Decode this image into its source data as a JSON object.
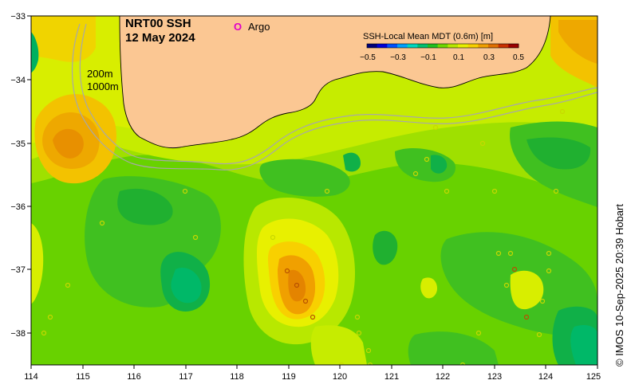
{
  "title": {
    "product": "NRT00 SSH",
    "date": "12 May 2024"
  },
  "legend": {
    "argo_symbol": "O",
    "argo_label": "Argo",
    "argo_color": "#e000c8"
  },
  "isobaths": {
    "shallow": "200m",
    "deep": "1000m"
  },
  "colorbar": {
    "title": "SSH-Local Mean MDT (0.6m) [m]",
    "ticks": [
      "−0.5",
      "−0.3",
      "−0.1",
      "0.1",
      "0.3",
      "0.5"
    ],
    "colors": [
      "#00007a",
      "#0000d8",
      "#0050ff",
      "#00a0ff",
      "#00d8c0",
      "#00c070",
      "#20c020",
      "#70d800",
      "#b8e800",
      "#e8f000",
      "#f8d000",
      "#f0a000",
      "#e07000",
      "#c83000",
      "#9a0000"
    ]
  },
  "axes": {
    "x_ticks": [
      "114",
      "115",
      "116",
      "117",
      "118",
      "119",
      "120",
      "121",
      "122",
      "123",
      "124",
      "125"
    ],
    "y_ticks": [
      "−33",
      "−34",
      "−35",
      "−36",
      "−37",
      "−38"
    ]
  },
  "credit": "© IMOS 10-Sep-2025 20:39 Hobart",
  "colors": {
    "land": "#fbc793",
    "coast": "#000000",
    "isobath": "#a8a8a8"
  }
}
